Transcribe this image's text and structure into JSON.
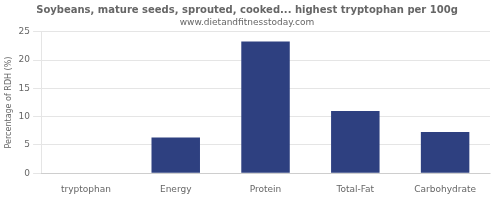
{
  "chart_data": {
    "type": "bar",
    "title": "Soybeans, mature seeds, sprouted, cooked... highest tryptophan per 100g",
    "subtitle": "www.dietandfitnesstoday.com",
    "categories": [
      "tryptophan",
      "Energy",
      "Protein",
      "Total-Fat",
      "Carbohydrate"
    ],
    "values": [
      0,
      6.3,
      23.3,
      11.0,
      7.3
    ],
    "color": "#2e4080",
    "ylabel": "Percentage of RDH (%)",
    "ylim": [
      0,
      25
    ],
    "yticks": [
      0,
      5,
      10,
      15,
      20,
      25
    ],
    "grid": true
  }
}
